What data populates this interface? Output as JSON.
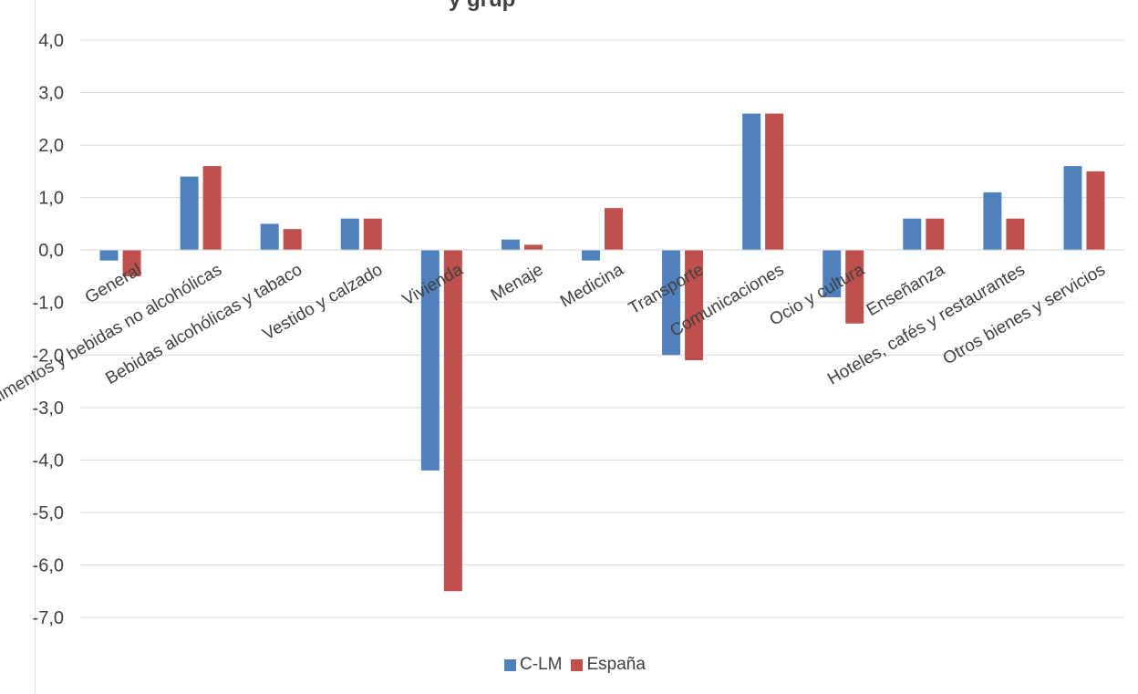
{
  "title_fragment": "y grup",
  "colors": {
    "C-LM": "#4e81bd",
    "España": "#c0504d"
  },
  "chart_data": {
    "type": "bar",
    "categories": [
      "General",
      "Alimentos y bebidas no alcohólicas",
      "Bebidas alcohólicas y tabaco",
      "Vestido y calzado",
      "Vivienda",
      "Menaje",
      "Medicina",
      "Transporte",
      "Comunicaciones",
      "Ocio y cultura",
      "Enseñanza",
      "Hoteles, cafés y restaurantes",
      "Otros bienes y servicios"
    ],
    "series": [
      {
        "name": "C-LM",
        "values": [
          -0.2,
          1.4,
          0.5,
          0.6,
          -4.2,
          0.2,
          -0.2,
          -2.0,
          2.6,
          -0.9,
          0.6,
          1.1,
          1.6
        ]
      },
      {
        "name": "España",
        "values": [
          -0.5,
          1.6,
          0.4,
          0.6,
          -6.5,
          0.1,
          0.8,
          -2.1,
          2.6,
          -1.4,
          0.6,
          0.6,
          1.5
        ]
      }
    ],
    "ylim": [
      -7.0,
      4.0
    ],
    "yticks": [
      "4,0",
      "3,0",
      "2,0",
      "1,0",
      "0,0",
      "-1,0",
      "-2,0",
      "-3,0",
      "-4,0",
      "-5,0",
      "-6,0",
      "-7,0"
    ],
    "grid": true,
    "legend_position": "bottom"
  }
}
